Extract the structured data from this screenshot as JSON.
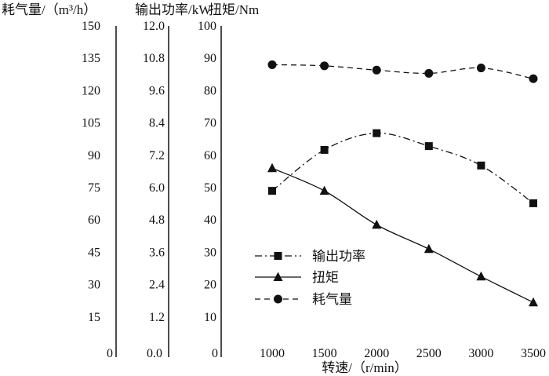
{
  "chart_data": {
    "type": "line",
    "xlabel": "转速/（r/min）",
    "x": [
      1000,
      1500,
      2000,
      2500,
      3000,
      3500
    ],
    "xlim": [
      1000,
      3500
    ],
    "axes": [
      {
        "id": "gas",
        "label": "耗气量/（m³/h）",
        "ticks": [
          "150",
          "135",
          "120",
          "105",
          "90",
          "75",
          "60",
          "45",
          "30",
          "15",
          "0"
        ],
        "range": [
          0,
          150
        ]
      },
      {
        "id": "power",
        "label": "输出功率/kW",
        "ticks": [
          "12.0",
          "10.8",
          "9.6",
          "8.4",
          "7.2",
          "6.0",
          "4.8",
          "3.6",
          "2.4",
          "1.2",
          "0.0"
        ],
        "range": [
          0,
          12
        ]
      },
      {
        "id": "torque",
        "label": "扭矩/Nm",
        "ticks": [
          "100",
          "90",
          "80",
          "70",
          "60",
          "50",
          "40",
          "30",
          "20",
          "10",
          "0"
        ],
        "range": [
          0,
          100
        ]
      }
    ],
    "series": [
      {
        "name": "输出功率",
        "axis": "power",
        "marker": "square",
        "dash": "dashdot",
        "color": "#111111",
        "values": [
          5.88,
          7.4,
          8.02,
          7.54,
          6.82,
          5.42
        ]
      },
      {
        "name": "扭矩",
        "axis": "torque",
        "marker": "triangle",
        "dash": "solid",
        "color": "#111111",
        "values": [
          56,
          49,
          38.5,
          31,
          22.5,
          14.5
        ]
      },
      {
        "name": "耗气量",
        "axis": "gas",
        "marker": "circle",
        "dash": "dashed",
        "color": "#111111",
        "values": [
          132,
          131.5,
          129.5,
          128,
          130.5,
          125.5
        ]
      }
    ],
    "legend": "lower-right",
    "grid": false
  }
}
